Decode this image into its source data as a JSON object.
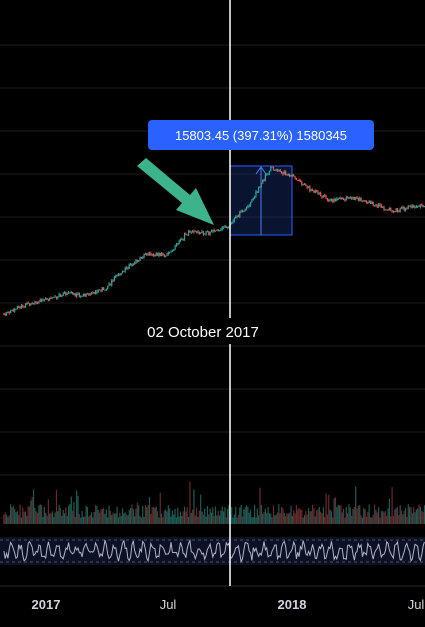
{
  "chart_data": {
    "type": "candlestick",
    "x_axis_ticks": [
      "2017",
      "Jul",
      "2018",
      "Jul"
    ],
    "crosshair_date": "02 October 2017",
    "measure_tooltip": "15803.45 (397.31%) 1580345",
    "price_series": [
      [
        "2016-11",
        740
      ],
      [
        "2016-12",
        900
      ],
      [
        "2017-01",
        1000
      ],
      [
        "2017-02",
        1150
      ],
      [
        "2017-03",
        1100
      ],
      [
        "2017-04",
        1300
      ],
      [
        "2017-05",
        2000
      ],
      [
        "2017-06",
        2700
      ],
      [
        "2017-07",
        2600
      ],
      [
        "2017-08",
        4300
      ],
      [
        "2017-09",
        4200
      ],
      [
        "2017-10",
        5000
      ],
      [
        "2017-11",
        8000
      ],
      [
        "2017-12",
        17000
      ],
      [
        "2018-01",
        14500
      ],
      [
        "2018-02",
        10500
      ],
      [
        "2018-03",
        8500
      ],
      [
        "2018-04",
        9000
      ],
      [
        "2018-05",
        8000
      ],
      [
        "2018-06",
        6800
      ],
      [
        "2018-07",
        7500
      ]
    ],
    "measure_change": {
      "absolute": 15803.45,
      "percent": 397.31
    },
    "panes": [
      "price",
      "volume",
      "oscillator"
    ],
    "grid": true,
    "colors": {
      "background": "#000000",
      "up": "#26a69a",
      "down": "#ef5350",
      "crosshair": "#ffffff",
      "tooltip_bg": "#2962ff",
      "arrow": "#3cb38a",
      "measure_box": "#1e3a8a",
      "oscillator": "#b0b4c8"
    }
  }
}
